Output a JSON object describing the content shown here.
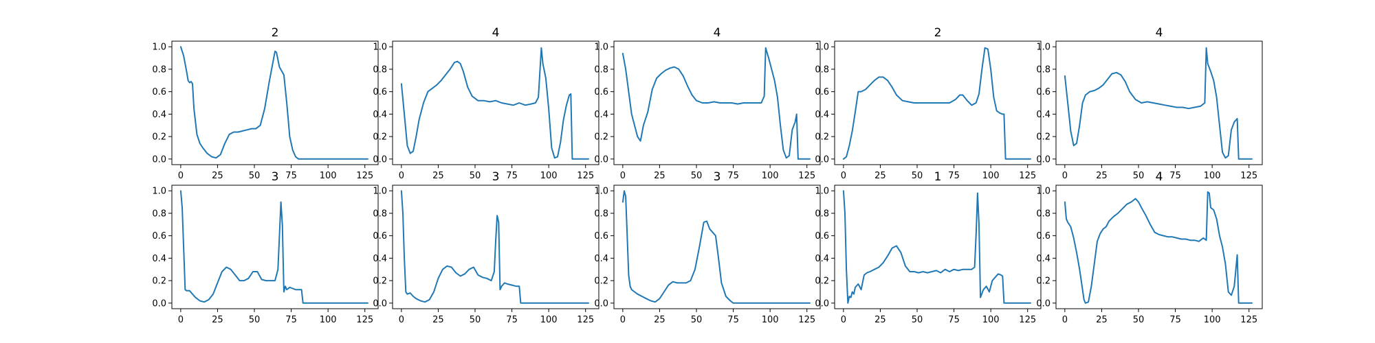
{
  "chart_data": [
    {
      "type": "line",
      "title": "2",
      "xlim": [
        -6,
        134
      ],
      "ylim": [
        -0.05,
        1.05
      ],
      "xticks": [
        0,
        25,
        50,
        75,
        100,
        125
      ],
      "yticks": [
        0.0,
        0.2,
        0.4,
        0.6,
        0.8,
        1.0
      ],
      "x": [
        0,
        2,
        4,
        5,
        6,
        7,
        8,
        9,
        11,
        13,
        15,
        18,
        21,
        24,
        27,
        30,
        33,
        36,
        39,
        42,
        45,
        48,
        51,
        54,
        57,
        60,
        62,
        64,
        65,
        67,
        70,
        72,
        74,
        76,
        78,
        80,
        82,
        127
      ],
      "y": [
        1.0,
        0.92,
        0.78,
        0.7,
        0.68,
        0.69,
        0.67,
        0.45,
        0.22,
        0.14,
        0.1,
        0.05,
        0.02,
        0.01,
        0.04,
        0.14,
        0.22,
        0.24,
        0.24,
        0.25,
        0.26,
        0.27,
        0.27,
        0.3,
        0.45,
        0.68,
        0.82,
        0.96,
        0.95,
        0.82,
        0.75,
        0.5,
        0.2,
        0.08,
        0.02,
        0.0,
        0.0,
        0.0
      ],
      "color": "#1f77b4"
    },
    {
      "type": "line",
      "title": "4",
      "xlim": [
        -6,
        134
      ],
      "ylim": [
        -0.05,
        1.05
      ],
      "xticks": [
        0,
        25,
        50,
        75,
        100,
        125
      ],
      "yticks": [
        0.0,
        0.2,
        0.4,
        0.6,
        0.8,
        1.0
      ],
      "x": [
        0,
        2,
        4,
        6,
        8,
        10,
        12,
        15,
        18,
        21,
        24,
        27,
        30,
        33,
        36,
        38,
        40,
        42,
        45,
        48,
        52,
        56,
        60,
        64,
        68,
        72,
        76,
        80,
        84,
        88,
        91,
        93,
        95,
        96,
        98,
        100,
        102,
        104,
        106,
        108,
        110,
        112,
        114,
        115,
        116,
        117,
        127
      ],
      "y": [
        0.67,
        0.4,
        0.12,
        0.05,
        0.07,
        0.2,
        0.35,
        0.5,
        0.6,
        0.63,
        0.66,
        0.7,
        0.75,
        0.8,
        0.86,
        0.87,
        0.85,
        0.78,
        0.64,
        0.56,
        0.52,
        0.52,
        0.51,
        0.52,
        0.5,
        0.49,
        0.48,
        0.5,
        0.48,
        0.49,
        0.5,
        0.55,
        0.99,
        0.85,
        0.72,
        0.45,
        0.1,
        0.01,
        0.02,
        0.15,
        0.35,
        0.48,
        0.57,
        0.58,
        0.0,
        0.0,
        0.0
      ],
      "color": "#1f77b4"
    },
    {
      "type": "line",
      "title": "4",
      "xlim": [
        -6,
        134
      ],
      "ylim": [
        -0.05,
        1.05
      ],
      "xticks": [
        0,
        25,
        50,
        75,
        100,
        125
      ],
      "yticks": [
        0.0,
        0.2,
        0.4,
        0.6,
        0.8,
        1.0
      ],
      "x": [
        0,
        2,
        4,
        6,
        8,
        10,
        12,
        14,
        17,
        20,
        23,
        26,
        29,
        32,
        35,
        38,
        41,
        44,
        47,
        50,
        54,
        58,
        62,
        66,
        70,
        74,
        78,
        82,
        86,
        90,
        94,
        96,
        97,
        99,
        101,
        103,
        105,
        107,
        109,
        111,
        113,
        115,
        117,
        118,
        119,
        127
      ],
      "y": [
        0.94,
        0.8,
        0.6,
        0.4,
        0.3,
        0.2,
        0.16,
        0.3,
        0.42,
        0.62,
        0.72,
        0.76,
        0.79,
        0.81,
        0.82,
        0.8,
        0.74,
        0.65,
        0.57,
        0.52,
        0.5,
        0.5,
        0.51,
        0.5,
        0.5,
        0.5,
        0.49,
        0.5,
        0.5,
        0.5,
        0.5,
        0.56,
        0.99,
        0.9,
        0.8,
        0.7,
        0.55,
        0.3,
        0.08,
        0.01,
        0.03,
        0.26,
        0.33,
        0.4,
        0.0,
        0.0
      ],
      "color": "#1f77b4"
    },
    {
      "type": "line",
      "title": "2",
      "xlim": [
        -6,
        134
      ],
      "ylim": [
        -0.05,
        1.05
      ],
      "xticks": [
        0,
        25,
        50,
        75,
        100,
        125
      ],
      "yticks": [
        0.0,
        0.2,
        0.4,
        0.6,
        0.8,
        1.0
      ],
      "x": [
        0,
        2,
        4,
        6,
        8,
        10,
        12,
        15,
        18,
        21,
        24,
        27,
        30,
        33,
        36,
        40,
        44,
        48,
        52,
        56,
        60,
        64,
        68,
        72,
        76,
        79,
        81,
        84,
        87,
        90,
        92,
        94,
        96,
        98,
        100,
        102,
        104,
        106,
        108,
        109,
        110,
        127
      ],
      "y": [
        0.0,
        0.02,
        0.12,
        0.25,
        0.42,
        0.6,
        0.6,
        0.62,
        0.66,
        0.7,
        0.73,
        0.73,
        0.7,
        0.64,
        0.57,
        0.52,
        0.51,
        0.5,
        0.5,
        0.5,
        0.5,
        0.5,
        0.5,
        0.5,
        0.53,
        0.57,
        0.57,
        0.52,
        0.48,
        0.5,
        0.58,
        0.8,
        0.99,
        0.98,
        0.8,
        0.55,
        0.43,
        0.41,
        0.4,
        0.4,
        0.0,
        0.0
      ],
      "color": "#1f77b4"
    },
    {
      "type": "line",
      "title": "4",
      "xlim": [
        -6,
        134
      ],
      "ylim": [
        -0.05,
        1.05
      ],
      "xticks": [
        0,
        25,
        50,
        75,
        100,
        125
      ],
      "yticks": [
        0.0,
        0.2,
        0.4,
        0.6,
        0.8,
        1.0
      ],
      "x": [
        0,
        2,
        4,
        6,
        8,
        10,
        12,
        14,
        17,
        20,
        23,
        26,
        29,
        32,
        35,
        38,
        41,
        44,
        48,
        52,
        56,
        60,
        64,
        68,
        72,
        76,
        80,
        84,
        88,
        92,
        95,
        96,
        97,
        99,
        101,
        103,
        105,
        107,
        109,
        111,
        113,
        115,
        117,
        118,
        127
      ],
      "y": [
        0.74,
        0.5,
        0.25,
        0.12,
        0.14,
        0.3,
        0.5,
        0.57,
        0.6,
        0.61,
        0.63,
        0.66,
        0.71,
        0.76,
        0.77,
        0.75,
        0.69,
        0.6,
        0.53,
        0.5,
        0.51,
        0.5,
        0.49,
        0.48,
        0.47,
        0.46,
        0.46,
        0.45,
        0.46,
        0.47,
        0.5,
        0.99,
        0.85,
        0.78,
        0.7,
        0.55,
        0.3,
        0.06,
        0.01,
        0.03,
        0.26,
        0.33,
        0.36,
        0.0,
        0.0
      ],
      "color": "#1f77b4"
    },
    {
      "type": "line",
      "title": "3",
      "xlim": [
        -6,
        134
      ],
      "ylim": [
        -0.05,
        1.05
      ],
      "xticks": [
        0,
        25,
        50,
        75,
        100,
        125
      ],
      "yticks": [
        0.0,
        0.2,
        0.4,
        0.6,
        0.8,
        1.0
      ],
      "x": [
        0,
        1,
        2,
        3,
        4,
        6,
        8,
        10,
        13,
        16,
        19,
        22,
        25,
        28,
        31,
        34,
        37,
        40,
        43,
        46,
        49,
        52,
        55,
        58,
        61,
        64,
        66,
        68,
        69,
        70,
        71,
        72,
        74,
        76,
        78,
        80,
        82,
        83,
        127
      ],
      "y": [
        1.0,
        0.85,
        0.5,
        0.12,
        0.11,
        0.11,
        0.08,
        0.05,
        0.02,
        0.01,
        0.03,
        0.08,
        0.18,
        0.28,
        0.32,
        0.3,
        0.25,
        0.2,
        0.2,
        0.22,
        0.28,
        0.28,
        0.21,
        0.2,
        0.2,
        0.2,
        0.3,
        0.9,
        0.7,
        0.1,
        0.15,
        0.12,
        0.14,
        0.13,
        0.12,
        0.12,
        0.12,
        0.0,
        0.0
      ],
      "color": "#1f77b4"
    },
    {
      "type": "line",
      "title": "3",
      "xlim": [
        -6,
        134
      ],
      "ylim": [
        -0.05,
        1.05
      ],
      "xticks": [
        0,
        25,
        50,
        75,
        100,
        125
      ],
      "yticks": [
        0.0,
        0.2,
        0.4,
        0.6,
        0.8,
        1.0
      ],
      "x": [
        0,
        1,
        2,
        3,
        4,
        6,
        8,
        10,
        13,
        16,
        19,
        22,
        25,
        28,
        31,
        34,
        37,
        40,
        43,
        46,
        49,
        52,
        55,
        58,
        61,
        63,
        64,
        65,
        66,
        67,
        68,
        70,
        72,
        75,
        78,
        80,
        81,
        127
      ],
      "y": [
        1.0,
        0.8,
        0.4,
        0.1,
        0.08,
        0.09,
        0.06,
        0.04,
        0.02,
        0.01,
        0.03,
        0.1,
        0.22,
        0.3,
        0.33,
        0.32,
        0.27,
        0.24,
        0.26,
        0.3,
        0.32,
        0.25,
        0.23,
        0.22,
        0.2,
        0.28,
        0.55,
        0.78,
        0.72,
        0.12,
        0.15,
        0.18,
        0.17,
        0.16,
        0.15,
        0.15,
        0.0,
        0.0
      ],
      "color": "#1f77b4"
    },
    {
      "type": "line",
      "title": "3",
      "xlim": [
        -6,
        134
      ],
      "ylim": [
        -0.05,
        1.05
      ],
      "xticks": [
        0,
        25,
        50,
        75,
        100,
        125
      ],
      "yticks": [
        0.0,
        0.2,
        0.4,
        0.6,
        0.8,
        1.0
      ],
      "x": [
        0,
        1,
        2,
        3,
        4,
        5,
        6,
        8,
        10,
        13,
        16,
        19,
        22,
        25,
        28,
        31,
        34,
        37,
        40,
        43,
        46,
        49,
        52,
        55,
        57,
        59,
        61,
        63,
        65,
        67,
        70,
        73,
        75,
        127
      ],
      "y": [
        0.9,
        1.0,
        0.95,
        0.6,
        0.25,
        0.15,
        0.12,
        0.1,
        0.08,
        0.06,
        0.04,
        0.02,
        0.01,
        0.04,
        0.1,
        0.16,
        0.19,
        0.18,
        0.18,
        0.18,
        0.2,
        0.3,
        0.5,
        0.72,
        0.73,
        0.66,
        0.63,
        0.6,
        0.4,
        0.18,
        0.06,
        0.02,
        0.0,
        0.0
      ],
      "color": "#1f77b4"
    },
    {
      "type": "line",
      "title": "1",
      "xlim": [
        -6,
        134
      ],
      "ylim": [
        -0.05,
        1.05
      ],
      "xticks": [
        0,
        25,
        50,
        75,
        100,
        125
      ],
      "yticks": [
        0.0,
        0.2,
        0.4,
        0.6,
        0.8,
        1.0
      ],
      "x": [
        0,
        1,
        2,
        3,
        4,
        5,
        6,
        7,
        8,
        10,
        12,
        14,
        16,
        18,
        21,
        24,
        27,
        30,
        33,
        36,
        39,
        42,
        45,
        48,
        51,
        54,
        57,
        60,
        63,
        66,
        69,
        72,
        75,
        78,
        81,
        84,
        87,
        89,
        90,
        91,
        92,
        93,
        95,
        97,
        99,
        101,
        103,
        105,
        107,
        108,
        109,
        127
      ],
      "y": [
        1.0,
        0.8,
        0.3,
        0.0,
        0.06,
        0.05,
        0.1,
        0.08,
        0.14,
        0.17,
        0.12,
        0.25,
        0.27,
        0.28,
        0.3,
        0.32,
        0.36,
        0.42,
        0.49,
        0.51,
        0.45,
        0.33,
        0.28,
        0.28,
        0.27,
        0.28,
        0.27,
        0.28,
        0.29,
        0.27,
        0.3,
        0.28,
        0.3,
        0.29,
        0.3,
        0.3,
        0.3,
        0.32,
        0.6,
        0.98,
        0.7,
        0.05,
        0.12,
        0.15,
        0.1,
        0.2,
        0.23,
        0.26,
        0.25,
        0.24,
        0.0,
        0.0
      ],
      "color": "#1f77b4"
    },
    {
      "type": "line",
      "title": "4",
      "xlim": [
        -6,
        134
      ],
      "ylim": [
        -0.05,
        1.05
      ],
      "xticks": [
        0,
        25,
        50,
        75,
        100,
        125
      ],
      "yticks": [
        0.0,
        0.2,
        0.4,
        0.6,
        0.8,
        1.0
      ],
      "x": [
        0,
        1,
        2,
        4,
        6,
        8,
        10,
        12,
        13,
        14,
        16,
        18,
        20,
        22,
        24,
        26,
        28,
        30,
        33,
        36,
        39,
        42,
        45,
        48,
        50,
        52,
        55,
        58,
        61,
        64,
        67,
        70,
        73,
        76,
        79,
        82,
        85,
        88,
        91,
        94,
        96,
        97,
        98,
        99,
        101,
        103,
        105,
        107,
        109,
        111,
        113,
        115,
        117,
        118,
        119,
        127
      ],
      "y": [
        0.9,
        0.75,
        0.72,
        0.68,
        0.58,
        0.45,
        0.3,
        0.12,
        0.03,
        0.0,
        0.01,
        0.15,
        0.35,
        0.55,
        0.62,
        0.66,
        0.68,
        0.73,
        0.77,
        0.8,
        0.84,
        0.88,
        0.9,
        0.93,
        0.9,
        0.85,
        0.78,
        0.7,
        0.63,
        0.61,
        0.6,
        0.59,
        0.59,
        0.58,
        0.57,
        0.57,
        0.56,
        0.56,
        0.55,
        0.58,
        0.56,
        0.99,
        0.98,
        0.85,
        0.83,
        0.75,
        0.6,
        0.5,
        0.35,
        0.1,
        0.07,
        0.15,
        0.43,
        0.0,
        0.0,
        0.0
      ],
      "color": "#1f77b4"
    }
  ]
}
